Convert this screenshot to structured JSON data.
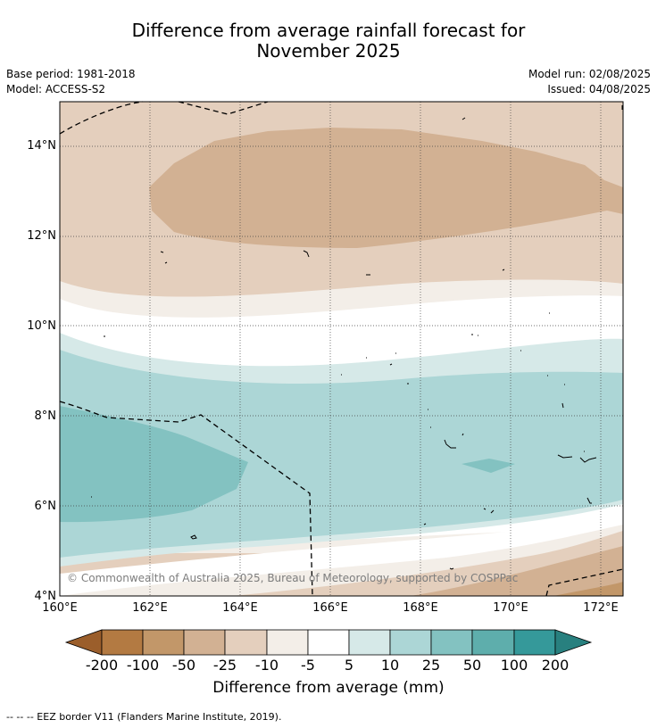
{
  "header": {
    "title_line1": "Difference from average rainfall forecast for",
    "title_line2": "November 2025",
    "base_period": "Base period: 1981-2018",
    "model": "Model: ACCESS-S2",
    "model_run": "Model run: 02/08/2025",
    "issued": "Issued: 04/08/2025"
  },
  "map": {
    "copyright": "© Commonwealth of Australia 2025, Bureau of Meteorology, supported by COSPPac",
    "lat_labels": [
      "14°N",
      "12°N",
      "10°N",
      "8°N",
      "6°N",
      "4°N"
    ],
    "lon_labels": [
      "160°E",
      "162°E",
      "164°E",
      "166°E",
      "168°E",
      "170°E",
      "172°E"
    ]
  },
  "legend": {
    "title": "Difference from average (mm)",
    "labels": [
      "-200",
      "-100",
      "-50",
      "-25",
      "-10",
      "-5",
      "5",
      "10",
      "25",
      "50",
      "100",
      "200"
    ],
    "colors": {
      "below_-200": "#9b5e2b",
      "-200_-100": "#b37a42",
      "-100_-50": "#c29769",
      "-50_-25": "#d2b193",
      "-25_-10": "#e4cfbd",
      "-10_-5": "#f3eee8",
      "-5_5": "#ffffff",
      "5_10": "#d6e9e8",
      "10_25": "#acd6d6",
      "25_50": "#83c2c1",
      "50_100": "#5eaeac",
      "100_200": "#35999a",
      "above_200": "#28807f"
    }
  },
  "footer": {
    "eez_note": "--  --  -- EEZ border V11 (Flanders Marine Institute, 2019)."
  }
}
